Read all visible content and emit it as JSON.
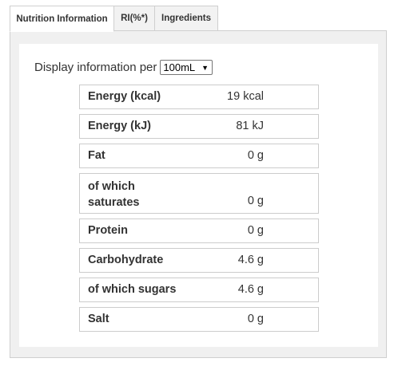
{
  "tabs": [
    {
      "label": "Nutrition Information",
      "active": true
    },
    {
      "label": "RI(%*)",
      "active": false
    },
    {
      "label": "Ingredients",
      "active": false
    }
  ],
  "display": {
    "label": "Display information per",
    "selected": "100mL"
  },
  "nutrition": [
    {
      "name": "Energy (kcal)",
      "value": "19 kcal"
    },
    {
      "name": "Energy (kJ)",
      "value": "81 kJ"
    },
    {
      "name": "Fat",
      "value": "0 g"
    },
    {
      "name": "of which saturates",
      "value": "0 g"
    },
    {
      "name": "Protein",
      "value": "0 g"
    },
    {
      "name": "Carbohydrate",
      "value": "4.6 g"
    },
    {
      "name": "of which sugars",
      "value": "4.6 g"
    },
    {
      "name": "Salt",
      "value": "0 g"
    }
  ]
}
